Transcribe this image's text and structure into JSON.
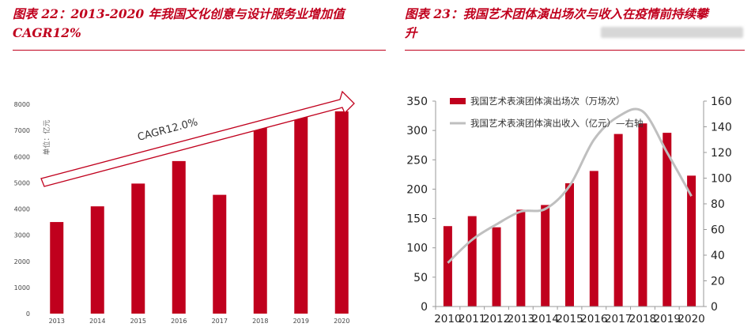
{
  "left": {
    "title_line1": "图表 22：2013-2020 年我国文化创意与设计服务业增加值",
    "title_line2": "CAGR12%",
    "unit": "单位：亿元",
    "annotation": "CAGR12.0%",
    "bar_color": "#c0001d"
  },
  "right": {
    "title_line1": "图表 23：我国艺术团体演出场次与收入在疫情前持续攀",
    "title_line2": "升",
    "bar_color": "#c0001d",
    "line_color": "#bfbfbf",
    "legend_bar": "我国艺术表演团体演出场次（万场次）",
    "legend_line": "我国艺术表演团体演出收入（亿元）—右轴"
  },
  "chart_data": [
    {
      "type": "bar",
      "categories": [
        "2013",
        "2014",
        "2015",
        "2016",
        "2017",
        "2018",
        "2019",
        "2020"
      ],
      "values": [
        3500,
        4100,
        4970,
        5830,
        4540,
        7180,
        7640,
        7730
      ],
      "ylabel": "单位：亿元",
      "ylim": [
        0,
        8000
      ],
      "yticks": [
        "0",
        "1000",
        "2000",
        "3000",
        "4000",
        "5000",
        "6000",
        "7000",
        "8000"
      ],
      "annotation": "CAGR12.0%",
      "grid": false
    },
    {
      "type": "bar",
      "categories": [
        "2010",
        "2011",
        "2012",
        "2013",
        "2014",
        "2015",
        "2016",
        "2017",
        "2018",
        "2019",
        "2020"
      ],
      "series": [
        {
          "name": "我国艺术表演团体演出场次（万场次）",
          "type": "bar",
          "axis": "left",
          "values": [
            137,
            154,
            135,
            165,
            173,
            210,
            231,
            294,
            312,
            296,
            223
          ]
        },
        {
          "name": "我国艺术表演团体演出收入（亿元）—右轴",
          "type": "line",
          "axis": "right",
          "values": [
            34,
            52,
            64,
            74,
            76,
            94,
            130,
            148,
            152,
            120,
            86
          ]
        }
      ],
      "ylim": [
        0,
        350
      ],
      "yticks": [
        "0",
        "50",
        "100",
        "150",
        "200",
        "250",
        "300",
        "350"
      ],
      "y2lim": [
        0,
        160
      ],
      "y2ticks": [
        "0",
        "20",
        "40",
        "60",
        "80",
        "100",
        "120",
        "140",
        "160"
      ],
      "legend": "top-left",
      "grid": false
    }
  ]
}
